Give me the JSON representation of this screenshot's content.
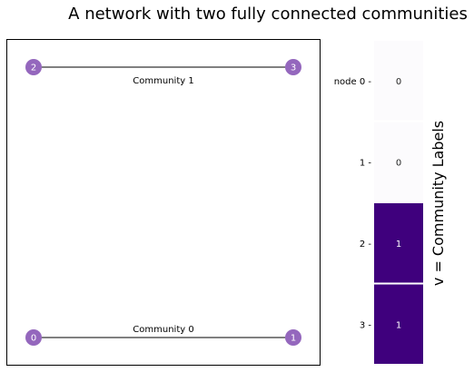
{
  "title": "A network with two fully connected communities",
  "network": {
    "nodes": [
      {
        "id": "0",
        "label": "0"
      },
      {
        "id": "1",
        "label": "1"
      },
      {
        "id": "2",
        "label": "2"
      },
      {
        "id": "3",
        "label": "3"
      }
    ],
    "edges": [
      {
        "source": "2",
        "target": "3",
        "label": "Community 1"
      },
      {
        "source": "0",
        "target": "1",
        "label": "Community 0"
      }
    ],
    "node_color": "#9467bd",
    "node_label_color": "#ffffff",
    "edge_color": "#000000"
  },
  "heatmap": {
    "row_labels": [
      "node 0 -",
      "1 -",
      "2 -",
      "3 -"
    ],
    "values": [
      0,
      0,
      1,
      1
    ],
    "cell_labels": [
      "0",
      "0",
      "1",
      "1"
    ],
    "colors": {
      "0": "#fcfbfd",
      "1": "#3f007d"
    },
    "text_colors": {
      "0": "#262626",
      "1": "#ffffff"
    },
    "ylabel": "v = Community Labels"
  }
}
